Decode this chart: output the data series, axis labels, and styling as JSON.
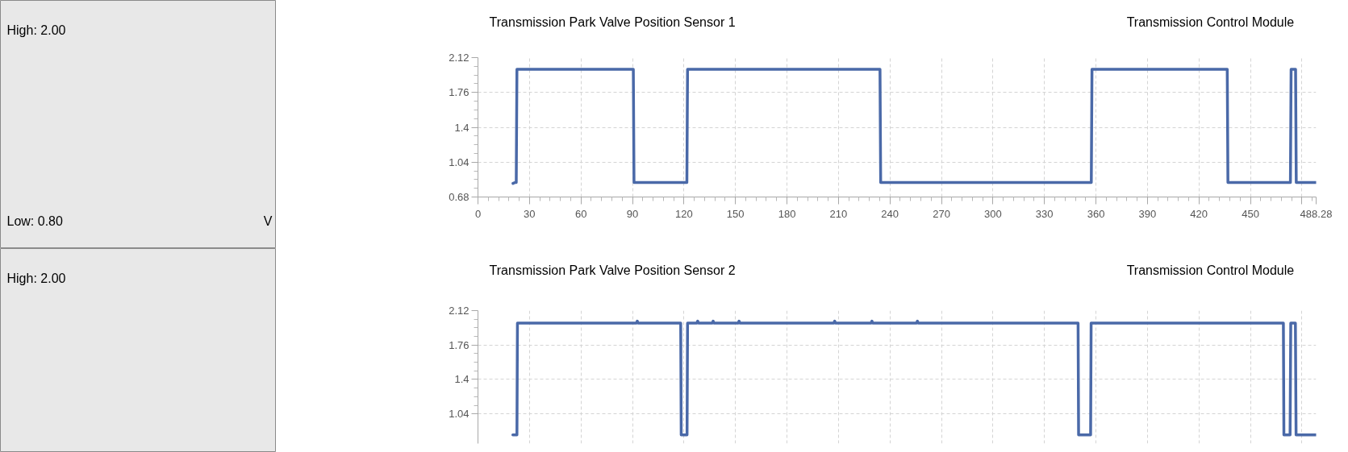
{
  "chart_data": [
    {
      "type": "line",
      "title": "Transmission Park Valve Position Sensor 1",
      "subtitle": "Transmission Control Module",
      "ylabel": "V",
      "annotations": [
        "High: 2.00",
        "Low: 0.80"
      ],
      "x": [
        20.4,
        21.6,
        22.3,
        22.7,
        90.5,
        90.9,
        121.7,
        122.1,
        234.2,
        234.6,
        357.3,
        357.7,
        436.5,
        436.9,
        473.3,
        473.7,
        476.3,
        476.7,
        488.28
      ],
      "series": [
        {
          "color": "#4a69a8",
          "values": [
            0.82,
            0.83,
            0.83,
            2.0,
            2.0,
            0.83,
            0.83,
            2.0,
            2.0,
            0.83,
            0.83,
            2.0,
            2.0,
            0.83,
            0.83,
            2.0,
            2.0,
            0.83,
            0.83
          ]
        }
      ],
      "xlim": [
        0,
        488.28
      ],
      "ylim": [
        0.68,
        2.12
      ],
      "xticks": [
        0,
        30,
        60,
        90,
        120,
        150,
        180,
        210,
        240,
        270,
        300,
        330,
        360,
        390,
        420,
        450,
        {
          "value": 480,
          "label": null
        },
        488.28
      ],
      "yticks": [
        0.68,
        1.04,
        1.4,
        1.76,
        2.12
      ],
      "grid": true
    },
    {
      "type": "line",
      "title": "Transmission Park Valve Position Sensor 2",
      "subtitle": "Transmission Control Module",
      "annotations": [
        "High: 2.00"
      ],
      "x": [
        20.3,
        22.7,
        23.0,
        92.3,
        92.8,
        93.3,
        118.1,
        118.4,
        121.8,
        122.1,
        127.5,
        128.0,
        128.5,
        136.5,
        137.0,
        137.5,
        151.6,
        152.1,
        152.6,
        207.3,
        207.8,
        208.3,
        229.0,
        229.5,
        230.0,
        255.5,
        256.0,
        256.5,
        349.6,
        349.9,
        356.9,
        357.2,
        469.2,
        469.5,
        473.1,
        473.5,
        476.2,
        476.6,
        488.28
      ],
      "series": [
        {
          "color": "#4a69a8",
          "values": [
            0.82,
            0.82,
            1.99,
            1.99,
            2.01,
            1.99,
            1.99,
            0.82,
            0.82,
            1.99,
            1.99,
            2.01,
            1.99,
            1.99,
            2.01,
            1.99,
            1.99,
            2.01,
            1.99,
            1.99,
            2.01,
            1.99,
            1.99,
            2.01,
            1.99,
            1.99,
            2.01,
            1.99,
            1.99,
            0.82,
            0.82,
            1.99,
            1.99,
            0.82,
            0.82,
            1.99,
            1.99,
            0.82,
            0.82
          ]
        }
      ],
      "xlim": [
        0,
        488.28
      ],
      "ylim": [
        0.73,
        2.12
      ],
      "xticks": [
        0,
        30,
        60,
        90,
        120,
        150,
        180,
        210,
        240,
        270,
        300,
        330,
        360,
        390,
        420,
        450,
        480,
        488.28
      ],
      "yticks": [
        1.04,
        1.4,
        1.76,
        2.12
      ],
      "grid": true,
      "tick_labels": "y"
    }
  ]
}
